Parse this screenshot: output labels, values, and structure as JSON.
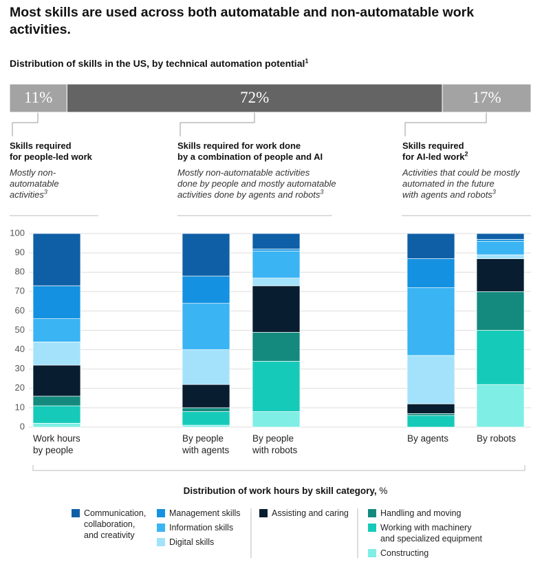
{
  "header": {
    "title": "Most skills are used across both automatable and non-automatable work activities.",
    "subtitle": "Distribution of skills in the US, by technical automation potential",
    "subtitle_note": "1"
  },
  "groups": [
    {
      "title": "Skills required\nfor people-led work",
      "description": "Mostly non-\nautomatable\nactivities",
      "description_note": "3"
    },
    {
      "title": "Skills required for work done\nby a combination of people and AI",
      "description": "Mostly non-automatable activities\ndone by people and mostly automatable\nactivities done by agents and robots",
      "description_note": "3"
    },
    {
      "title": "Skills required\nfor AI-led work",
      "title_note": "2",
      "description": "Activities that could be mostly\nautomated in the future\nwith agents and robots",
      "description_note": "3"
    }
  ],
  "chart_data": [
    {
      "type": "split-bar",
      "values": [
        11,
        72,
        17
      ],
      "value_labels": [
        "11%",
        "72%",
        "17%"
      ],
      "colors": [
        "#a3a3a3",
        "#646464",
        "#a3a3a3"
      ],
      "xlim": [
        0,
        100
      ]
    },
    {
      "type": "stacked-bar",
      "categories": [
        "Work hours\nby people",
        "By people\nwith agents",
        "By people\nwith robots",
        "By agents",
        "By robots"
      ],
      "series": [
        {
          "name": "Communication,\ncollaboration,\nand creativity",
          "color": "#0f5fa6",
          "values": [
            27,
            22,
            8,
            13,
            3
          ]
        },
        {
          "name": "Management skills",
          "color": "#1491e0",
          "values": [
            17,
            14,
            1,
            15,
            1
          ]
        },
        {
          "name": "Information skills",
          "color": "#3ab4f3",
          "values": [
            12,
            24,
            14,
            35,
            7
          ]
        },
        {
          "name": "Digital skills",
          "color": "#a3e2fa",
          "values": [
            12,
            18,
            4,
            25,
            2
          ]
        },
        {
          "name": "Assisting and caring",
          "color": "#081d30",
          "values": [
            16,
            12,
            24,
            5,
            17
          ]
        },
        {
          "name": "Handling and moving",
          "color": "#148a7e",
          "values": [
            5,
            2,
            15,
            1,
            20
          ]
        },
        {
          "name": "Working with machinery\nand specialized equipment",
          "color": "#16cab9",
          "values": [
            9,
            7,
            26,
            6,
            28
          ]
        },
        {
          "name": "Constructing",
          "color": "#7feee4",
          "values": [
            2,
            1,
            8,
            0,
            22
          ]
        }
      ],
      "ylim": [
        0,
        100
      ],
      "yticks": [
        0,
        10,
        20,
        30,
        40,
        50,
        60,
        70,
        80,
        90,
        100
      ],
      "grid": true,
      "x_label": "Distribution of work hours by skill category,",
      "x_label_unit": "%"
    }
  ]
}
